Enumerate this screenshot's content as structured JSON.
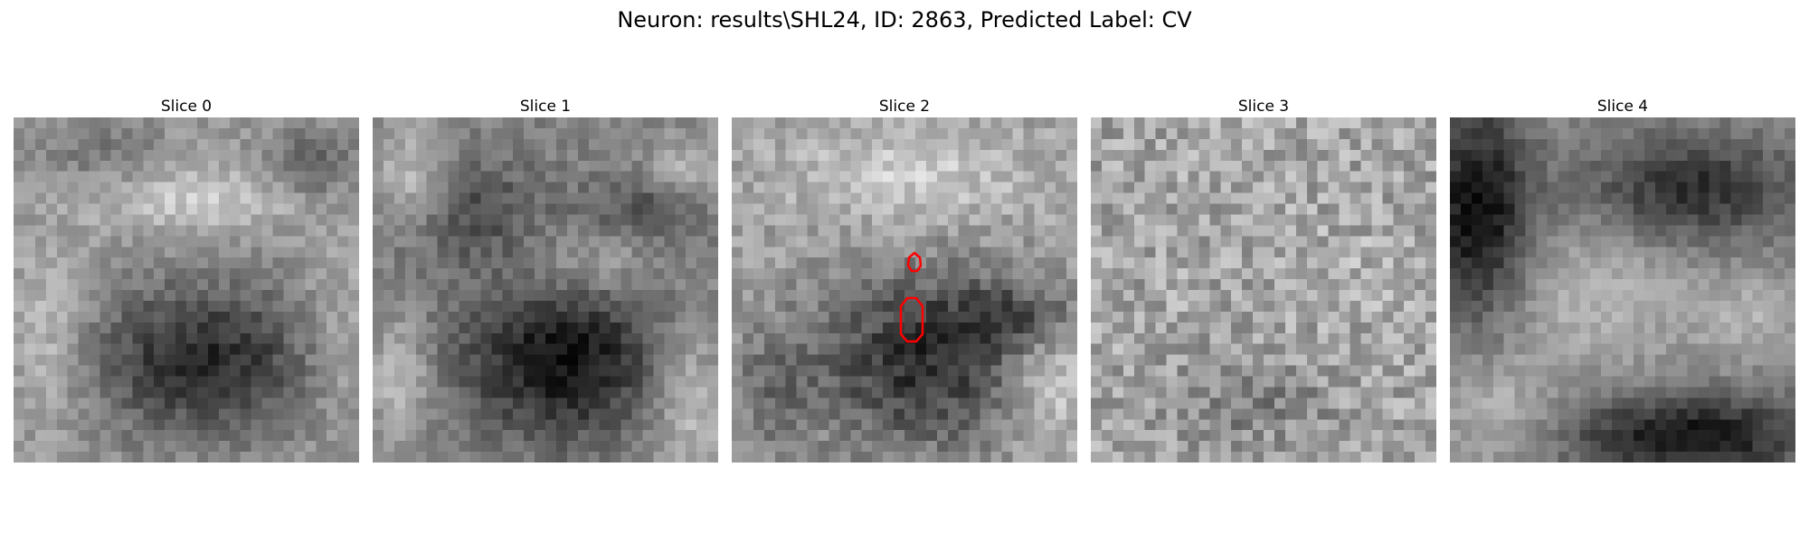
{
  "figure": {
    "suptitle": "Neuron: results\\SHL24, ID: 2863, Predicted Label: CV"
  },
  "slices": [
    {
      "title": "Slice 0"
    },
    {
      "title": "Slice 1"
    },
    {
      "title": "Slice 2",
      "has_contour": true,
      "contour_color": "#ff0000"
    },
    {
      "title": "Slice 3"
    },
    {
      "title": "Slice 4"
    }
  ]
}
